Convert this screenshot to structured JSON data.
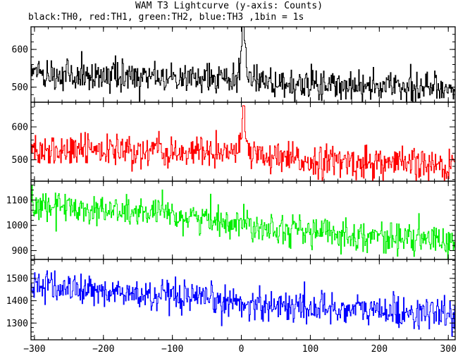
{
  "chart_data": {
    "type": "line",
    "title": "WAM T3 Lightcurve (y-axis: Counts)",
    "subtitle": "black:TH0, red:TH1, green:TH2, blue:TH3 ,1bin = 1s",
    "x": {
      "min": -305,
      "max": 310,
      "step": 1,
      "ticks": [
        -300,
        -200,
        -100,
        0,
        100,
        200,
        300
      ],
      "tick_labels": [
        "−300",
        "−200",
        "−100",
        "0",
        "100",
        "200",
        "300"
      ]
    },
    "grid": false,
    "panels": [
      {
        "name": "TH0",
        "color": "#000000",
        "ylim": [
          460,
          660
        ],
        "yticks": [
          500,
          600
        ],
        "ytick_labels": [
          "500",
          "600"
        ],
        "trend": {
          "points": [
            [
              -305,
              535
            ],
            [
              -100,
              525
            ],
            [
              -10,
              525
            ],
            [
              0,
              540
            ],
            [
              20,
              515
            ],
            [
              60,
              505
            ],
            [
              310,
              498
            ]
          ],
          "noise_sd": 21
        },
        "flare": {
          "center": 2,
          "width": 4,
          "peak": 120
        }
      },
      {
        "name": "TH1",
        "color": "#ff0000",
        "ylim": [
          435,
          675
        ],
        "yticks": [
          500,
          600
        ],
        "ytick_labels": [
          "500",
          "600"
        ],
        "trend": {
          "points": [
            [
              -305,
              530
            ],
            [
              -100,
              522
            ],
            [
              -10,
              522
            ],
            [
              0,
              535
            ],
            [
              20,
              505
            ],
            [
              60,
              500
            ],
            [
              310,
              480
            ]
          ],
          "noise_sd": 25
        },
        "flare": {
          "center": 2,
          "width": 4,
          "peak": 110
        }
      },
      {
        "name": "TH2",
        "color": "#00ee00",
        "ylim": [
          865,
          1175
        ],
        "yticks": [
          900,
          1000,
          1100
        ],
        "ytick_labels": [
          "900",
          "1000",
          "1100"
        ],
        "trend": {
          "points": [
            [
              -305,
              1085
            ],
            [
              -200,
              1060
            ],
            [
              -100,
              1040
            ],
            [
              0,
              1010
            ],
            [
              100,
              975
            ],
            [
              200,
              955
            ],
            [
              310,
              935
            ]
          ],
          "noise_sd": 30
        },
        "flare": null
      },
      {
        "name": "TH3",
        "color": "#0000ff",
        "ylim": [
          1225,
          1585
        ],
        "yticks": [
          1300,
          1400,
          1500
        ],
        "ytick_labels": [
          "1300",
          "1400",
          "1500"
        ],
        "trend": {
          "points": [
            [
              -305,
              1470
            ],
            [
              -200,
              1440
            ],
            [
              -100,
              1410
            ],
            [
              0,
              1390
            ],
            [
              100,
              1370
            ],
            [
              200,
              1355
            ],
            [
              310,
              1335
            ]
          ],
          "noise_sd": 36
        },
        "flare": null
      }
    ]
  }
}
